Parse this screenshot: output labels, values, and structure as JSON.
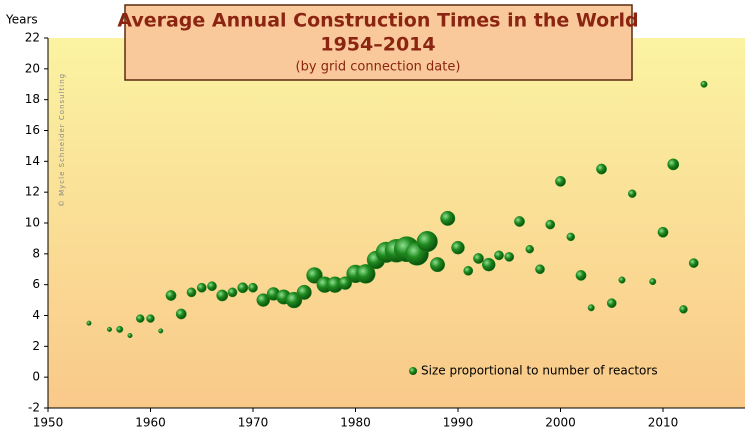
{
  "chart_data": {
    "type": "bubble",
    "title": "Average Annual Construction Times in the World",
    "subtitle": "1954–2014",
    "note": "(by grid connection date)",
    "y_label": "Years",
    "watermark": "© Mycle Schneider Consulting",
    "size_legend": "Size proportional to number of reactors",
    "xlim": [
      1950,
      2018
    ],
    "xticks": [
      1950,
      1960,
      1970,
      1980,
      1990,
      2000,
      2010
    ],
    "ylim": [
      -2,
      22
    ],
    "yticks": [
      -2,
      0,
      2,
      4,
      6,
      8,
      10,
      12,
      14,
      16,
      18,
      20,
      22
    ],
    "grid": false,
    "series": [
      {
        "color": "#1f8a1f",
        "x": [
          1954,
          1956,
          1957,
          1958,
          1959,
          1960,
          1961,
          1962,
          1963,
          1964,
          1965,
          1966,
          1967,
          1968,
          1969,
          1970,
          1971,
          1972,
          1973,
          1974,
          1975,
          1976,
          1977,
          1978,
          1979,
          1980,
          1981,
          1982,
          1983,
          1984,
          1985,
          1986,
          1987,
          1988,
          1989,
          1990,
          1991,
          1992,
          1993,
          1994,
          1995,
          1996,
          1997,
          1998,
          1999,
          2000,
          2001,
          2002,
          2003,
          2004,
          2005,
          2006,
          2007,
          2009,
          2010,
          2011,
          2012,
          2013,
          2014
        ],
        "values": [
          3.5,
          3.1,
          3.1,
          2.7,
          3.8,
          3.8,
          3.0,
          5.3,
          4.1,
          5.5,
          5.8,
          5.9,
          5.3,
          5.5,
          5.8,
          5.8,
          5.0,
          5.4,
          5.2,
          5.0,
          5.5,
          6.6,
          6.0,
          6.0,
          6.1,
          6.7,
          6.7,
          7.6,
          8.1,
          8.2,
          8.3,
          8.0,
          8.8,
          7.3,
          10.3,
          8.4,
          6.9,
          7.7,
          7.3,
          7.9,
          7.8,
          10.1,
          8.3,
          7.0,
          9.9,
          12.7,
          9.1,
          6.6,
          4.5,
          13.5,
          4.8,
          6.3,
          11.9,
          6.2,
          9.4,
          13.8,
          4.4,
          7.4,
          19.0
        ],
        "sizes": [
          1,
          1,
          2,
          1,
          3,
          3,
          1,
          5,
          5,
          4,
          4,
          4,
          6,
          4,
          5,
          4,
          8,
          8,
          10,
          12,
          10,
          12,
          12,
          12,
          8,
          15,
          17,
          15,
          20,
          25,
          30,
          25,
          20,
          10,
          10,
          8,
          4,
          5,
          8,
          4,
          4,
          5,
          3,
          4,
          4,
          5,
          3,
          5,
          2,
          5,
          4,
          2,
          3,
          2,
          5,
          6,
          3,
          4,
          2
        ]
      }
    ]
  }
}
